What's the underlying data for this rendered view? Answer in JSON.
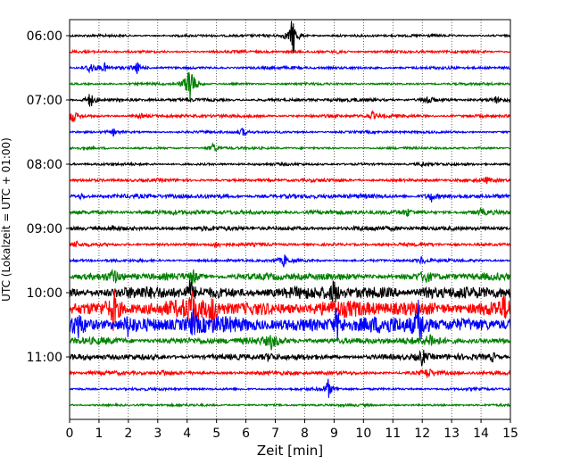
{
  "chart_data": {
    "type": "line",
    "title": "",
    "xlabel": "Zeit  [min]",
    "ylabel": "UTC (Lokalzeit = UTC + 01:00)",
    "xlim": [
      0,
      15
    ],
    "x_ticks": [
      "0",
      "1",
      "2",
      "3",
      "4",
      "5",
      "6",
      "7",
      "8",
      "9",
      "10",
      "11",
      "12",
      "13",
      "14",
      "15"
    ],
    "y_ticks": [
      "06:00",
      "07:00",
      "08:00",
      "09:00",
      "10:00",
      "11:00"
    ],
    "grid": "vertical dotted lines at each minute",
    "legend": "none",
    "trace_color_cycle": [
      "#000000",
      "#ff0000",
      "#0000ff",
      "#008000"
    ],
    "trace_interval_minutes": 15,
    "start_time": "06:00",
    "traces": [
      {
        "start": "06:00",
        "color": "#000000",
        "activity": 0.2,
        "events": [
          {
            "minute": 7.6,
            "amp": 3.0
          }
        ]
      },
      {
        "start": "06:15",
        "color": "#ff0000",
        "activity": 0.2,
        "events": [
          {
            "minute": 9.2,
            "amp": 0.5
          }
        ]
      },
      {
        "start": "06:30",
        "color": "#0000ff",
        "activity": 0.22,
        "events": [
          {
            "minute": 0.7,
            "amp": 0.9
          },
          {
            "minute": 1.2,
            "amp": 0.5
          },
          {
            "minute": 2.3,
            "amp": 0.7
          }
        ]
      },
      {
        "start": "06:45",
        "color": "#008000",
        "activity": 0.18,
        "events": [
          {
            "minute": 4.1,
            "amp": 3.5
          },
          {
            "minute": 4.1,
            "amp": 0.6
          }
        ]
      },
      {
        "start": "07:00",
        "color": "#000000",
        "activity": 0.25,
        "events": [
          {
            "minute": 0.7,
            "amp": 1.2
          },
          {
            "minute": 12.2,
            "amp": 0.8
          },
          {
            "minute": 14.5,
            "amp": 0.4
          }
        ]
      },
      {
        "start": "07:15",
        "color": "#ff0000",
        "activity": 0.25,
        "events": [
          {
            "minute": 0.1,
            "amp": 1.0
          },
          {
            "minute": 2.4,
            "amp": 0.3
          },
          {
            "minute": 10.3,
            "amp": 0.5
          }
        ]
      },
      {
        "start": "07:30",
        "color": "#0000ff",
        "activity": 0.2,
        "events": [
          {
            "minute": 1.5,
            "amp": 0.4
          },
          {
            "minute": 5.9,
            "amp": 0.6
          }
        ]
      },
      {
        "start": "07:45",
        "color": "#008000",
        "activity": 0.18,
        "events": [
          {
            "minute": 4.9,
            "amp": 0.8
          }
        ]
      },
      {
        "start": "08:00",
        "color": "#000000",
        "activity": 0.2,
        "events": [
          {
            "minute": 12.0,
            "amp": 0.3
          }
        ]
      },
      {
        "start": "08:15",
        "color": "#ff0000",
        "activity": 0.25,
        "events": [
          {
            "minute": 14.2,
            "amp": 0.3
          }
        ]
      },
      {
        "start": "08:30",
        "color": "#0000ff",
        "activity": 0.35,
        "events": [
          {
            "minute": 0.4,
            "amp": 0.4
          },
          {
            "minute": 12.3,
            "amp": 0.7
          }
        ]
      },
      {
        "start": "08:45",
        "color": "#008000",
        "activity": 0.35,
        "events": [
          {
            "minute": 11.5,
            "amp": 0.4
          },
          {
            "minute": 14.0,
            "amp": 0.4
          }
        ]
      },
      {
        "start": "09:00",
        "color": "#000000",
        "activity": 0.35,
        "events": [
          {
            "minute": 1.5,
            "amp": 0.4
          },
          {
            "minute": 14.2,
            "amp": 0.4
          }
        ]
      },
      {
        "start": "09:15",
        "color": "#ff0000",
        "activity": 0.25,
        "events": [
          {
            "minute": 0.2,
            "amp": 0.4
          },
          {
            "minute": 5.0,
            "amp": 0.5
          }
        ]
      },
      {
        "start": "09:30",
        "color": "#0000ff",
        "activity": 0.22,
        "events": [
          {
            "minute": 7.3,
            "amp": 0.8
          },
          {
            "minute": 12.0,
            "amp": 0.6
          }
        ]
      },
      {
        "start": "09:45",
        "color": "#008000",
        "activity": 0.55,
        "events": [
          {
            "minute": 1.5,
            "amp": 1.0
          },
          {
            "minute": 4.2,
            "amp": 1.0
          },
          {
            "minute": 12.1,
            "amp": 1.0
          }
        ]
      },
      {
        "start": "10:00",
        "color": "#000000",
        "activity": 0.95,
        "events": [
          {
            "minute": 4.1,
            "amp": 1.3
          },
          {
            "minute": 9.0,
            "amp": 1.6
          },
          {
            "minute": 12.2,
            "amp": 1.5
          }
        ]
      },
      {
        "start": "10:15",
        "color": "#ff0000",
        "activity": 1.25,
        "events": [
          {
            "minute": 1.5,
            "amp": 2.6
          },
          {
            "minute": 4.2,
            "amp": 2.5
          },
          {
            "minute": 4.9,
            "amp": 2.3
          },
          {
            "minute": 14.8,
            "amp": 0.9
          }
        ]
      },
      {
        "start": "10:30",
        "color": "#0000ff",
        "activity": 1.25,
        "events": [
          {
            "minute": 0.3,
            "amp": 1.3
          },
          {
            "minute": 2.0,
            "amp": 1.2
          },
          {
            "minute": 4.2,
            "amp": 1.5
          },
          {
            "minute": 9.1,
            "amp": 2.0
          },
          {
            "minute": 11.9,
            "amp": 3.6
          }
        ]
      },
      {
        "start": "10:45",
        "color": "#008000",
        "activity": 0.55,
        "events": [
          {
            "minute": 6.9,
            "amp": 1.0
          },
          {
            "minute": 12.3,
            "amp": 0.8
          }
        ]
      },
      {
        "start": "11:00",
        "color": "#000000",
        "activity": 0.45,
        "events": [
          {
            "minute": 6.8,
            "amp": 0.6
          },
          {
            "minute": 12.0,
            "amp": 1.2
          },
          {
            "minute": 14.4,
            "amp": 0.6
          }
        ]
      },
      {
        "start": "11:15",
        "color": "#ff0000",
        "activity": 0.3,
        "events": [
          {
            "minute": 3.2,
            "amp": 0.4
          },
          {
            "minute": 12.2,
            "amp": 0.8
          }
        ]
      },
      {
        "start": "11:30",
        "color": "#0000ff",
        "activity": 0.2,
        "events": [
          {
            "minute": 8.8,
            "amp": 1.3
          }
        ]
      },
      {
        "start": "11:45",
        "color": "#008000",
        "activity": 0.18,
        "events": []
      }
    ]
  }
}
